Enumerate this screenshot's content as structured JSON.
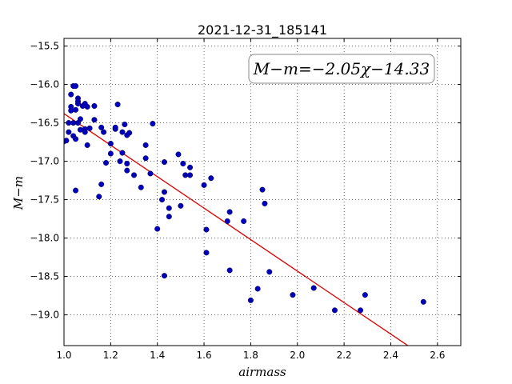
{
  "chart_data": {
    "type": "scatter",
    "title": "2021-12-31_185141",
    "xlabel": "airmass",
    "ylabel": "M−m",
    "xlim": [
      1.0,
      2.7
    ],
    "ylim": [
      -19.4,
      -15.4
    ],
    "xticks": [
      1.0,
      1.2,
      1.4,
      1.6,
      1.8,
      2.0,
      2.2,
      2.4,
      2.6
    ],
    "yticks": [
      -15.5,
      -16.0,
      -16.5,
      -17.0,
      -17.5,
      -18.0,
      -18.5,
      -19.0
    ],
    "xtick_labels": [
      "1.0",
      "1.2",
      "1.4",
      "1.6",
      "1.8",
      "2.0",
      "2.2",
      "2.4",
      "2.6"
    ],
    "ytick_labels": [
      "−15.5",
      "−16.0",
      "−16.5",
      "−17.0",
      "−17.5",
      "−18.0",
      "−18.5",
      "−19.0"
    ],
    "grid": true,
    "annotation": "M−m=−2.05χ−14.33",
    "fit": {
      "slope": -2.05,
      "intercept": -14.33,
      "color": "#dd0000"
    },
    "point_color": "#0000bb",
    "points": [
      [
        1.0,
        -16.74
      ],
      [
        1.01,
        -16.73
      ],
      [
        1.02,
        -16.5
      ],
      [
        1.02,
        -16.62
      ],
      [
        1.03,
        -16.34
      ],
      [
        1.03,
        -16.29
      ],
      [
        1.03,
        -16.13
      ],
      [
        1.04,
        -16.02
      ],
      [
        1.04,
        -16.5
      ],
      [
        1.04,
        -16.67
      ],
      [
        1.05,
        -16.02
      ],
      [
        1.05,
        -16.33
      ],
      [
        1.05,
        -16.71
      ],
      [
        1.05,
        -17.38
      ],
      [
        1.06,
        -16.18
      ],
      [
        1.06,
        -16.22
      ],
      [
        1.06,
        -16.25
      ],
      [
        1.06,
        -16.5
      ],
      [
        1.07,
        -16.45
      ],
      [
        1.07,
        -16.59
      ],
      [
        1.08,
        -16.28
      ],
      [
        1.09,
        -16.25
      ],
      [
        1.09,
        -16.58
      ],
      [
        1.09,
        -16.62
      ],
      [
        1.1,
        -16.29
      ],
      [
        1.1,
        -16.79
      ],
      [
        1.11,
        -16.57
      ],
      [
        1.13,
        -16.46
      ],
      [
        1.13,
        -16.28
      ],
      [
        1.15,
        -17.46
      ],
      [
        1.16,
        -16.56
      ],
      [
        1.16,
        -17.3
      ],
      [
        1.17,
        -16.62
      ],
      [
        1.18,
        -17.02
      ],
      [
        1.2,
        -16.77
      ],
      [
        1.2,
        -16.9
      ],
      [
        1.22,
        -16.58
      ],
      [
        1.22,
        -16.56
      ],
      [
        1.23,
        -16.26
      ],
      [
        1.24,
        -17.0
      ],
      [
        1.25,
        -16.89
      ],
      [
        1.25,
        -16.62
      ],
      [
        1.26,
        -16.52
      ],
      [
        1.27,
        -16.66
      ],
      [
        1.27,
        -17.03
      ],
      [
        1.27,
        -17.12
      ],
      [
        1.28,
        -16.63
      ],
      [
        1.3,
        -17.18
      ],
      [
        1.33,
        -17.34
      ],
      [
        1.35,
        -16.79
      ],
      [
        1.35,
        -16.96
      ],
      [
        1.37,
        -17.16
      ],
      [
        1.38,
        -16.51
      ],
      [
        1.4,
        -17.88
      ],
      [
        1.42,
        -17.5
      ],
      [
        1.43,
        -17.4
      ],
      [
        1.43,
        -17.01
      ],
      [
        1.43,
        -18.49
      ],
      [
        1.45,
        -17.72
      ],
      [
        1.45,
        -17.61
      ],
      [
        1.49,
        -16.91
      ],
      [
        1.5,
        -17.58
      ],
      [
        1.51,
        -17.03
      ],
      [
        1.52,
        -17.18
      ],
      [
        1.54,
        -17.08
      ],
      [
        1.54,
        -17.18
      ],
      [
        1.6,
        -17.31
      ],
      [
        1.61,
        -17.89
      ],
      [
        1.61,
        -18.19
      ],
      [
        1.63,
        -17.22
      ],
      [
        1.7,
        -17.78
      ],
      [
        1.71,
        -17.66
      ],
      [
        1.71,
        -18.42
      ],
      [
        1.77,
        -17.78
      ],
      [
        1.8,
        -18.81
      ],
      [
        1.83,
        -18.66
      ],
      [
        1.85,
        -17.37
      ],
      [
        1.86,
        -17.55
      ],
      [
        1.88,
        -18.44
      ],
      [
        1.98,
        -18.74
      ],
      [
        2.07,
        -18.65
      ],
      [
        2.16,
        -18.94
      ],
      [
        2.27,
        -18.94
      ],
      [
        2.29,
        -18.74
      ],
      [
        2.54,
        -18.83
      ]
    ]
  }
}
